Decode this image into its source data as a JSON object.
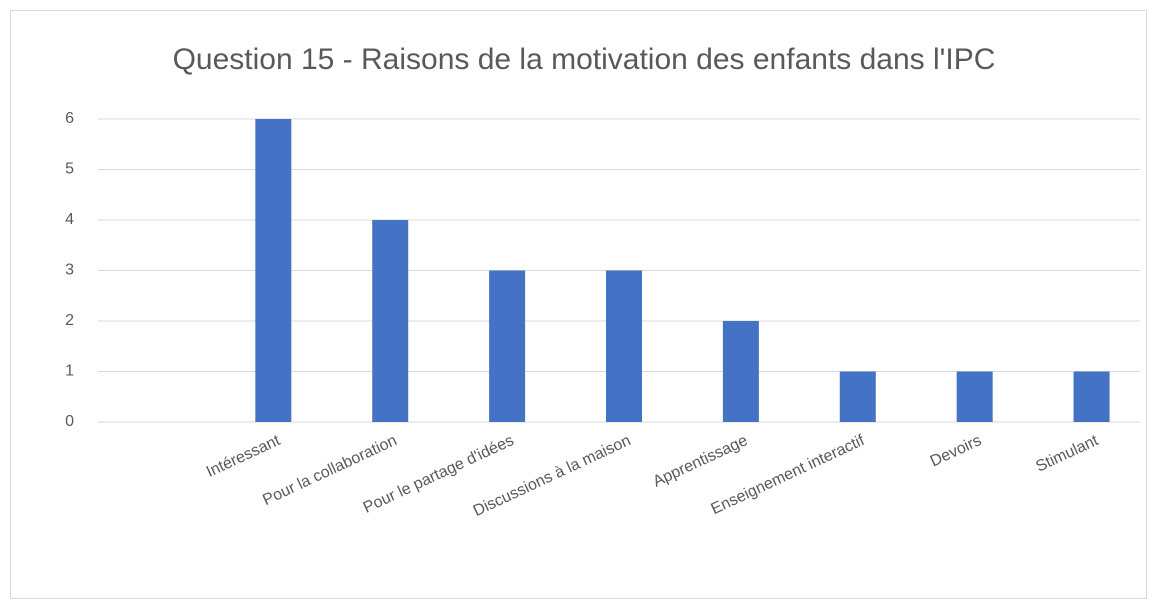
{
  "chart_data": {
    "type": "bar",
    "title": "Question 15 - Raisons de la motivation des enfants dans l'IPC",
    "categories": [
      null,
      "Intéressant",
      "Pour la collaboration",
      "Pour le partage d'idées",
      "Discussions à la maison",
      "Apprentissage",
      "Enseignement interactif",
      "Devoirs",
      "Stimulant"
    ],
    "values": [
      null,
      6,
      4,
      3,
      3,
      2,
      1,
      1,
      1
    ],
    "color": "#4472c4",
    "ylim": [
      0,
      6
    ],
    "yticks": [
      0,
      1,
      2,
      3,
      4,
      5,
      6
    ],
    "grid": true
  }
}
